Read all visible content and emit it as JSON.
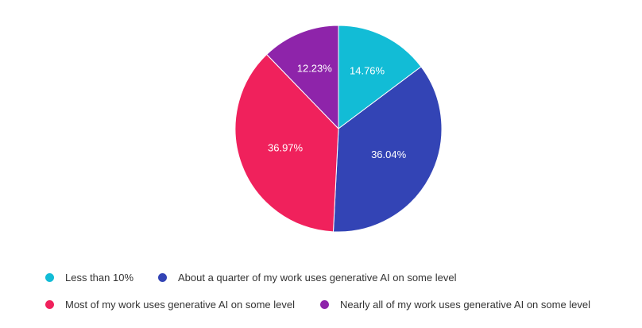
{
  "chart_data": {
    "type": "pie",
    "title": "",
    "slices": [
      {
        "label": "Less than 10%",
        "value": 14.76,
        "display": "14.76%",
        "color": "#12bcd6"
      },
      {
        "label": "About a quarter of my work uses generative AI on some level",
        "value": 36.04,
        "display": "36.04%",
        "color": "#3344b5"
      },
      {
        "label": "Most of my work uses generative AI on some level",
        "value": 36.97,
        "display": "36.97%",
        "color": "#f0215c"
      },
      {
        "label": "Nearly all of my work uses generative AI on some level",
        "value": 12.23,
        "display": "12.23%",
        "color": "#8e24aa"
      }
    ],
    "legend_position": "bottom"
  }
}
